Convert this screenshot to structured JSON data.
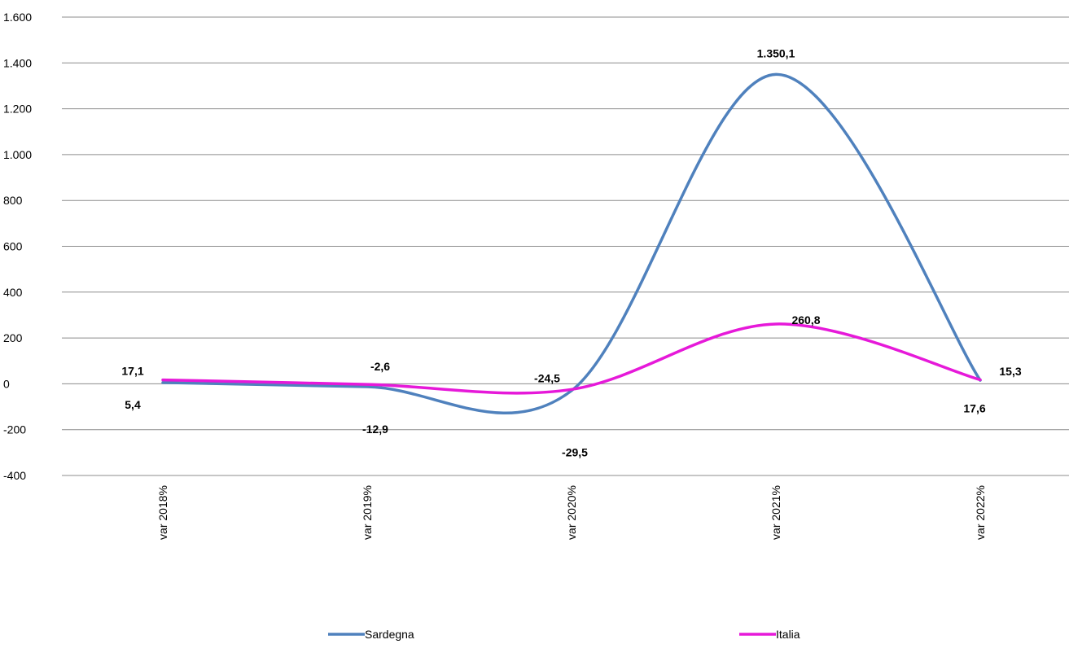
{
  "chart_data": {
    "type": "line",
    "title": "",
    "xlabel": "",
    "ylabel": "",
    "categories": [
      "var 2018%",
      "var 2019%",
      "var 2020%",
      "var 2021%",
      "var 2022%"
    ],
    "ylim": [
      -400,
      1600
    ],
    "yticks": [
      -400,
      -200,
      0,
      200,
      400,
      600,
      800,
      1000,
      1200,
      1400,
      1600
    ],
    "ytick_labels": [
      "-400",
      "-200",
      "0",
      "200",
      "400",
      "600",
      "800",
      "1.000",
      "1.200",
      "1.400",
      "1.600"
    ],
    "grid": true,
    "smooth": true,
    "legend_position": "bottom",
    "series": [
      {
        "name": "Sardegna",
        "color": "#4f81bd",
        "values": [
          5.4,
          -12.9,
          -29.5,
          1350.1,
          15.3
        ],
        "labels": [
          "5,4",
          "-12,9",
          "-29,5",
          "1.350,1",
          "15,3"
        ]
      },
      {
        "name": "Italia",
        "color": "#e619d9",
        "values": [
          17.1,
          -2.6,
          -24.5,
          260.8,
          17.6
        ],
        "labels": [
          "17,1",
          "-2,6",
          "-24,5",
          "260,8",
          "17,6"
        ]
      }
    ]
  }
}
